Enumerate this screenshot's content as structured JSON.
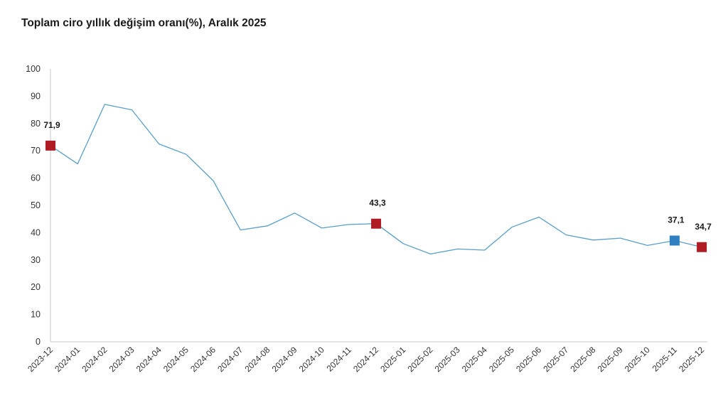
{
  "chart_data": {
    "type": "line",
    "title": "Toplam ciro yıllık değişim oranı(%), Aralık 2025",
    "xlabel": "",
    "ylabel": "",
    "ylim": [
      0,
      100
    ],
    "yticks": [
      0,
      10,
      20,
      30,
      40,
      50,
      60,
      70,
      80,
      90,
      100
    ],
    "grid": false,
    "categories": [
      "2023-12",
      "2024-01",
      "2024-02",
      "2024-03",
      "2024-04",
      "2024-05",
      "2024-06",
      "2024-07",
      "2024-08",
      "2024-09",
      "2024-10",
      "2024-11",
      "2024-12",
      "2025-01",
      "2025-02",
      "2025-03",
      "2025-04",
      "2025-05",
      "2025-06",
      "2025-07",
      "2025-08",
      "2025-09",
      "2025-10",
      "2025-11",
      "2025-12"
    ],
    "series": [
      {
        "values": [
          71.9,
          65.2,
          87.0,
          85.0,
          72.5,
          68.7,
          59.0,
          41.0,
          42.5,
          47.2,
          41.7,
          43.0,
          43.3,
          36.0,
          32.2,
          34.0,
          33.6,
          42.0,
          45.7,
          39.2,
          37.3,
          38.0,
          35.3,
          37.1,
          34.7
        ],
        "color": "#5a9ec8"
      }
    ],
    "highlighted_points": [
      {
        "category": "2023-12",
        "value": 71.9,
        "label": "71,9",
        "color": "#b01c24"
      },
      {
        "category": "2024-12",
        "value": 43.3,
        "label": "43,3",
        "color": "#b01c24"
      },
      {
        "category": "2025-11",
        "value": 37.1,
        "label": "37,1",
        "color": "#2f80c3"
      },
      {
        "category": "2025-12",
        "value": 34.7,
        "label": "34,7",
        "color": "#b01c24"
      }
    ]
  }
}
